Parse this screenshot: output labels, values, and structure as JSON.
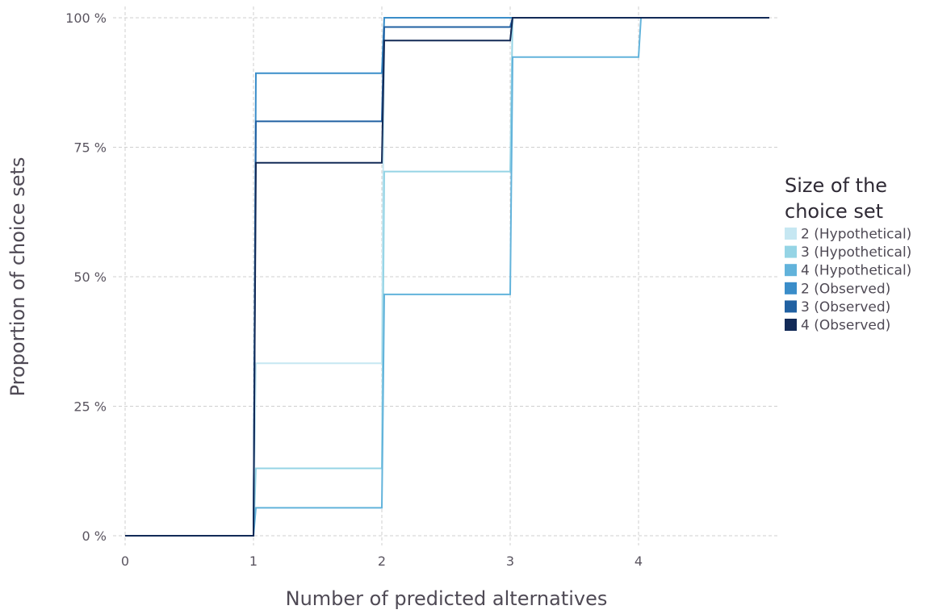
{
  "chart_data": {
    "type": "line",
    "step": true,
    "xlabel": "Number of predicted alternatives",
    "ylabel": "Proportion of choice sets",
    "xlim": [
      0,
      5
    ],
    "ylim": [
      0,
      100
    ],
    "x_ticks": [
      0,
      1,
      2,
      3,
      4
    ],
    "x_tick_labels": [
      "0",
      "1",
      "2",
      "3",
      "4"
    ],
    "y_ticks": [
      0,
      25,
      50,
      75,
      100
    ],
    "y_tick_labels": [
      "0 %",
      "25 %",
      "50 %",
      "75 %",
      "100 %"
    ],
    "grid": true,
    "legend": {
      "title_lines": [
        "Size of the",
        "choice set"
      ],
      "placement": "right"
    },
    "x": [
      0,
      1,
      2,
      3,
      4,
      5
    ],
    "series": [
      {
        "name": "2 (Hypothetical)",
        "color": "#c6e7f2",
        "values": [
          0,
          33.3,
          100,
          100,
          100,
          100
        ]
      },
      {
        "name": "3 (Hypothetical)",
        "color": "#95d4e5",
        "values": [
          0,
          13,
          70.3,
          100,
          100,
          100
        ]
      },
      {
        "name": "4 (Hypothetical)",
        "color": "#62b3db",
        "values": [
          0,
          5.4,
          46.6,
          92.4,
          100,
          100
        ]
      },
      {
        "name": "2 (Observed)",
        "color": "#3a8dc9",
        "values": [
          0,
          89.3,
          100,
          100,
          100,
          100
        ]
      },
      {
        "name": "3 (Observed)",
        "color": "#2161a2",
        "values": [
          0,
          80,
          98.2,
          100,
          100,
          100
        ]
      },
      {
        "name": "4 (Observed)",
        "color": "#122a57",
        "values": [
          0,
          72,
          95.6,
          100,
          100,
          100
        ]
      }
    ]
  }
}
